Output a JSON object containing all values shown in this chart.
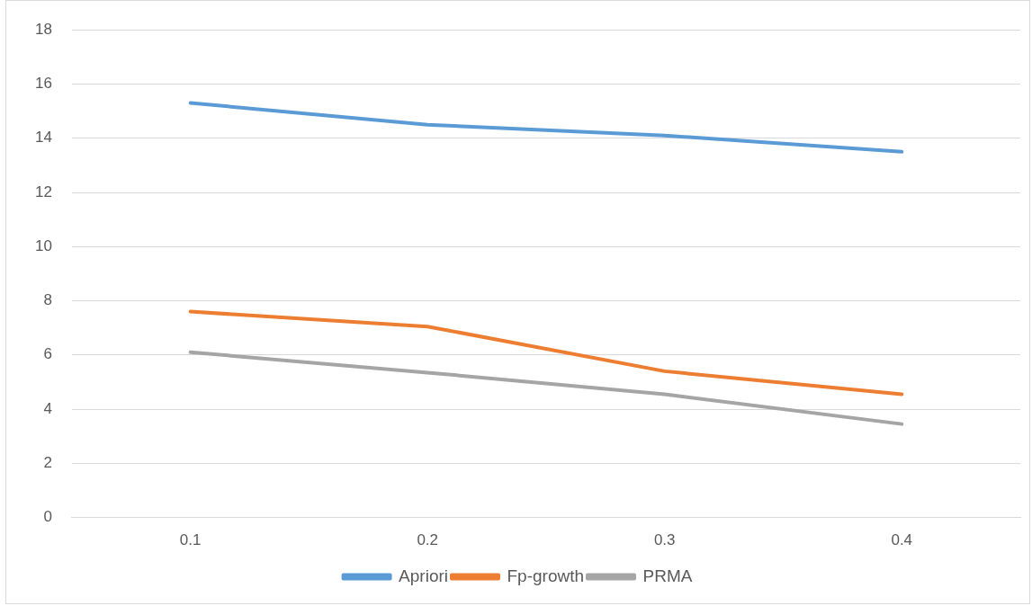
{
  "chart_data": {
    "type": "line",
    "categories": [
      "0.1",
      "0.2",
      "0.3",
      "0.4"
    ],
    "series": [
      {
        "name": "Apriori",
        "color": "#5b9bd5",
        "values": [
          15.3,
          14.5,
          14.1,
          13.5
        ]
      },
      {
        "name": "Fp-growth",
        "color": "#ed7d31",
        "values": [
          7.6,
          7.05,
          5.4,
          4.55
        ]
      },
      {
        "name": "PRMA",
        "color": "#a5a5a5",
        "values": [
          6.1,
          5.35,
          4.55,
          3.45
        ]
      }
    ],
    "ylim": [
      0,
      18
    ],
    "yticks": [
      0,
      2,
      4,
      6,
      8,
      10,
      12,
      14,
      16,
      18
    ],
    "grid": "y",
    "legend": "bottom",
    "marker": "none",
    "line_style": "solid"
  }
}
